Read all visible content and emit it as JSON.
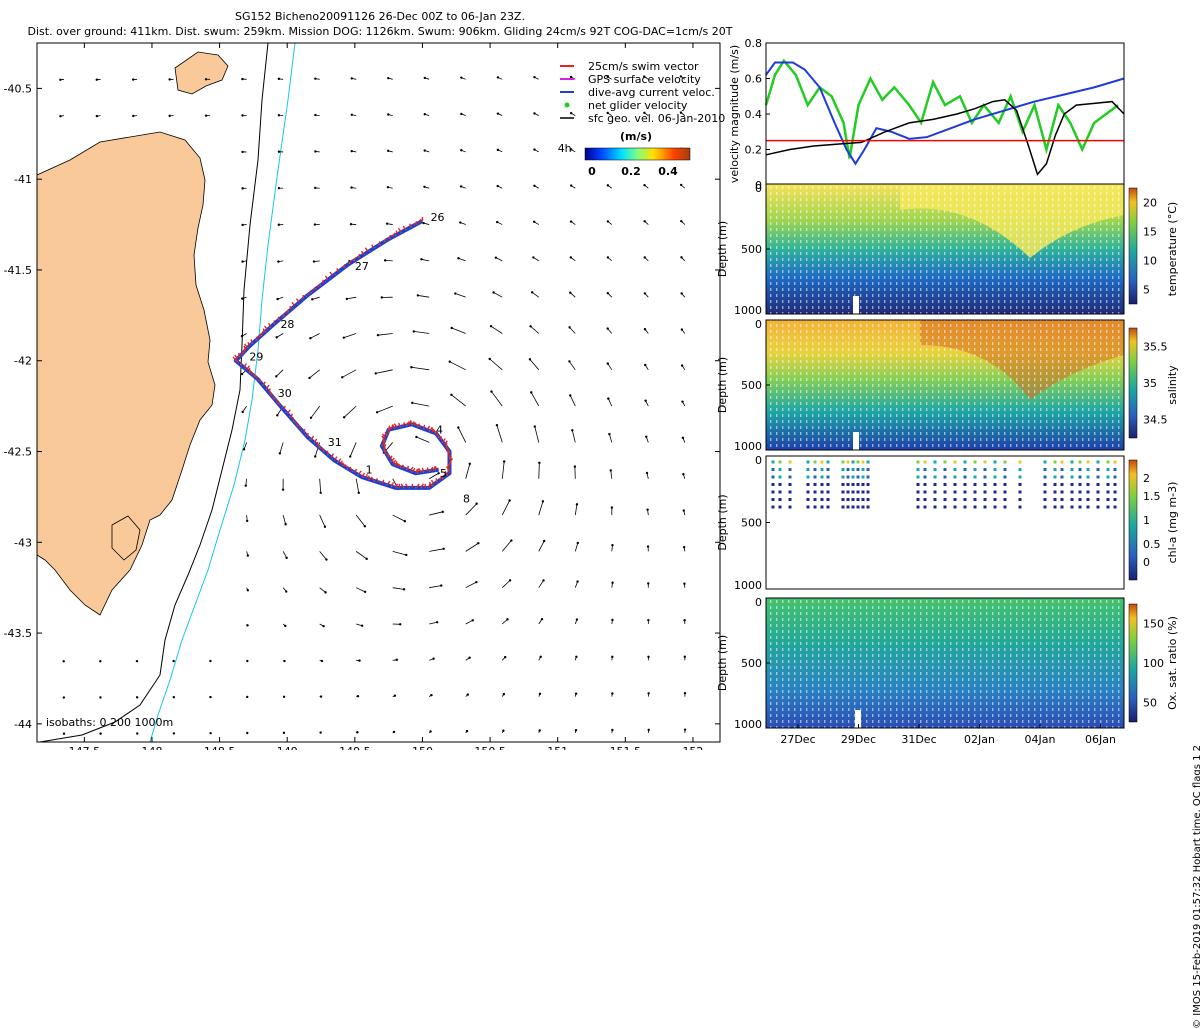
{
  "header": {
    "title_line1": "SG152 Bicheno20091126 26-Dec 00Z to 06-Jan 23Z.",
    "title_line2": "Dist. over ground: 411km. Dist. swum: 259km. Mission DOG: 1126km. Swum: 906km. Gliding 24cm/s 92T COG-DAC=1cm/s 20T"
  },
  "credit": "© IMOS 15-Feb-2019 01:57:32 Hobart time. QC flags 1  2",
  "colors": {
    "land": "#f9c99a",
    "isobath_200": "#000000",
    "isobath_1000": "#17c6e6",
    "swim": "#e8231a",
    "gps": "#e020e0",
    "dac": "#1f3cd8",
    "net": "#22cc22",
    "geo": "#000000",
    "threshold": "#ff0000"
  },
  "chart_data": [
    {
      "type": "scatter",
      "id": "map",
      "xlim": [
        147.15,
        152.2
      ],
      "ylim": [
        -44.1,
        -40.25
      ],
      "xticks": [
        147.5,
        148,
        148.5,
        149,
        149.5,
        150,
        150.5,
        151,
        151.5,
        152
      ],
      "xtick_labels": [
        "147.5",
        "148",
        "148.5",
        "149",
        "149.5",
        "150",
        "150.5",
        "151",
        "151.5",
        "152"
      ],
      "yticks": [
        -40.5,
        -41,
        -41.5,
        -42,
        -42.5,
        -43,
        -43.5,
        -44
      ],
      "ytick_labels": [
        "-40.5",
        "-41",
        "-41.5",
        "-42",
        "-42.5",
        "-43",
        "-43.5",
        "-44"
      ],
      "legend": {
        "placement": "top-right",
        "entries": [
          "25cm/s swim vector",
          "GPS surface velocity",
          "dive-avg current veloc.",
          "net glider velocity",
          "sfc geo. vel. 06-Jan-2010"
        ],
        "colorbar_label": "(m/s)",
        "colorbar_ticks": [
          "0",
          "0.2",
          "0.4"
        ]
      },
      "isobaths_label": "isobaths: 0   200  1000m",
      "track": [
        {
          "lon": 150.0,
          "lat": -41.23
        },
        {
          "lon": 149.75,
          "lat": -41.33
        },
        {
          "lon": 149.45,
          "lat": -41.47
        },
        {
          "lon": 149.15,
          "lat": -41.64
        },
        {
          "lon": 148.9,
          "lat": -41.8
        },
        {
          "lon": 148.72,
          "lat": -41.92
        },
        {
          "lon": 148.62,
          "lat": -42.0
        },
        {
          "lon": 148.78,
          "lat": -42.1
        },
        {
          "lon": 148.95,
          "lat": -42.25
        },
        {
          "lon": 149.15,
          "lat": -42.42
        },
        {
          "lon": 149.35,
          "lat": -42.55
        },
        {
          "lon": 149.55,
          "lat": -42.64
        },
        {
          "lon": 149.8,
          "lat": -42.7
        },
        {
          "lon": 150.05,
          "lat": -42.7
        },
        {
          "lon": 150.2,
          "lat": -42.62
        },
        {
          "lon": 150.2,
          "lat": -42.5
        },
        {
          "lon": 150.1,
          "lat": -42.4
        },
        {
          "lon": 149.92,
          "lat": -42.35
        },
        {
          "lon": 149.75,
          "lat": -42.38
        },
        {
          "lon": 149.7,
          "lat": -42.47
        },
        {
          "lon": 149.78,
          "lat": -42.57
        },
        {
          "lon": 149.95,
          "lat": -42.62
        },
        {
          "lon": 150.12,
          "lat": -42.6
        }
      ],
      "day_labels": [
        {
          "text": "26",
          "lon": 150.06,
          "lat": -41.23
        },
        {
          "text": "27",
          "lon": 149.5,
          "lat": -41.5
        },
        {
          "text": "28",
          "lon": 148.95,
          "lat": -41.82
        },
        {
          "text": "29",
          "lon": 148.72,
          "lat": -42.0
        },
        {
          "text": "30",
          "lon": 148.93,
          "lat": -42.2
        },
        {
          "text": "31",
          "lon": 149.3,
          "lat": -42.47
        },
        {
          "text": "1",
          "lon": 149.58,
          "lat": -42.62
        },
        {
          "text": "4",
          "lon": 150.1,
          "lat": -42.4
        },
        {
          "text": "5",
          "lon": 150.13,
          "lat": -42.64
        },
        {
          "text": "8",
          "lon": 150.3,
          "lat": -42.78
        },
        {
          "text": "4h",
          "lon": 151.0,
          "lat": -40.85
        }
      ]
    },
    {
      "type": "line",
      "id": "velocity",
      "ylabel": "velocity magnitude (m/s)",
      "ylim": [
        0,
        0.8
      ],
      "yticks": [
        0,
        0.2,
        0.4,
        0.6,
        0.8
      ],
      "ytick_labels": [
        "0",
        "0.2",
        "0.4",
        "0.6",
        "0.8"
      ],
      "xlim": [
        0,
        12
      ],
      "series": [
        {
          "color": "#22cc22",
          "values": [
            [
              0,
              0.45
            ],
            [
              0.3,
              0.62
            ],
            [
              0.6,
              0.7
            ],
            [
              1.0,
              0.62
            ],
            [
              1.4,
              0.45
            ],
            [
              1.8,
              0.55
            ],
            [
              2.2,
              0.5
            ],
            [
              2.6,
              0.35
            ],
            [
              2.8,
              0.15
            ],
            [
              3.1,
              0.45
            ],
            [
              3.5,
              0.6
            ],
            [
              3.9,
              0.48
            ],
            [
              4.3,
              0.55
            ],
            [
              4.8,
              0.45
            ],
            [
              5.2,
              0.35
            ],
            [
              5.6,
              0.58
            ],
            [
              6.0,
              0.45
            ],
            [
              6.5,
              0.5
            ],
            [
              6.9,
              0.35
            ],
            [
              7.3,
              0.45
            ],
            [
              7.8,
              0.35
            ],
            [
              8.2,
              0.5
            ],
            [
              8.6,
              0.3
            ],
            [
              9.0,
              0.45
            ],
            [
              9.4,
              0.2
            ],
            [
              9.8,
              0.45
            ],
            [
              10.2,
              0.35
            ],
            [
              10.6,
              0.2
            ],
            [
              11.0,
              0.35
            ],
            [
              11.4,
              0.4
            ],
            [
              11.8,
              0.45
            ]
          ]
        },
        {
          "color": "#1f3cd8",
          "values": [
            [
              0,
              0.62
            ],
            [
              0.3,
              0.69
            ],
            [
              0.9,
              0.69
            ],
            [
              1.3,
              0.65
            ],
            [
              1.8,
              0.55
            ],
            [
              2.3,
              0.35
            ],
            [
              2.7,
              0.2
            ],
            [
              3.0,
              0.12
            ],
            [
              3.3,
              0.2
            ],
            [
              3.7,
              0.32
            ],
            [
              4.2,
              0.3
            ],
            [
              4.8,
              0.26
            ],
            [
              5.4,
              0.27
            ],
            [
              6.2,
              0.32
            ],
            [
              7.0,
              0.37
            ],
            [
              8.0,
              0.42
            ],
            [
              9.0,
              0.47
            ],
            [
              10.0,
              0.51
            ],
            [
              11.0,
              0.55
            ],
            [
              12.0,
              0.6
            ]
          ]
        },
        {
          "color": "#000000",
          "values": [
            [
              0,
              0.17
            ],
            [
              0.8,
              0.2
            ],
            [
              1.6,
              0.22
            ],
            [
              2.4,
              0.23
            ],
            [
              3.2,
              0.24
            ],
            [
              4.0,
              0.3
            ],
            [
              4.8,
              0.35
            ],
            [
              5.6,
              0.37
            ],
            [
              6.4,
              0.4
            ],
            [
              7.0,
              0.43
            ],
            [
              7.6,
              0.47
            ],
            [
              8.0,
              0.48
            ],
            [
              8.4,
              0.42
            ],
            [
              8.8,
              0.22
            ],
            [
              9.1,
              0.06
            ],
            [
              9.4,
              0.12
            ],
            [
              9.7,
              0.28
            ],
            [
              10.0,
              0.4
            ],
            [
              10.4,
              0.45
            ],
            [
              11.0,
              0.46
            ],
            [
              11.6,
              0.47
            ],
            [
              12.0,
              0.4
            ]
          ]
        },
        {
          "color": "#ff0000",
          "values": [
            [
              0,
              0.25
            ],
            [
              12,
              0.25
            ]
          ]
        }
      ]
    },
    {
      "type": "scatter",
      "id": "temperature",
      "ylabel": "Depth (m)",
      "colorbar_label": "temperature (°C)",
      "colorbar_ticks": [
        "5",
        "10",
        "15",
        "20"
      ],
      "ylim": [
        1000,
        0
      ],
      "yticks": [
        0,
        500,
        1000
      ],
      "ytick_labels": [
        "0",
        "500",
        "1000"
      ]
    },
    {
      "type": "scatter",
      "id": "salinity",
      "ylabel": "Depth (m)",
      "colorbar_label": "salinity",
      "colorbar_ticks": [
        "34.5",
        "35",
        "35.5"
      ],
      "ylim": [
        1000,
        0
      ],
      "yticks": [
        0,
        500,
        1000
      ],
      "ytick_labels": [
        "0",
        "500",
        "1000"
      ]
    },
    {
      "type": "scatter",
      "id": "chla",
      "ylabel": "Depth (m)",
      "colorbar_label": "chl-a (mg m-3)",
      "colorbar_ticks": [
        "0",
        "0.5",
        "1",
        "1.5",
        "2"
      ],
      "ylim": [
        1000,
        0
      ],
      "yticks": [
        0,
        500,
        1000
      ],
      "ytick_labels": [
        "0",
        "500",
        "1000"
      ]
    },
    {
      "type": "scatter",
      "id": "oxygen",
      "ylabel": "Depth (m)",
      "colorbar_label": "Ox. sat. ratio (%)",
      "colorbar_ticks": [
        "50",
        "100",
        "150"
      ],
      "ylim": [
        1000,
        0
      ],
      "yticks": [
        0,
        500,
        1000
      ],
      "ytick_labels": [
        "0",
        "500",
        "1000"
      ],
      "xtick_labels": [
        "27Dec",
        "29Dec",
        "31Dec",
        "02Jan",
        "04Jan",
        "06Jan"
      ]
    }
  ]
}
